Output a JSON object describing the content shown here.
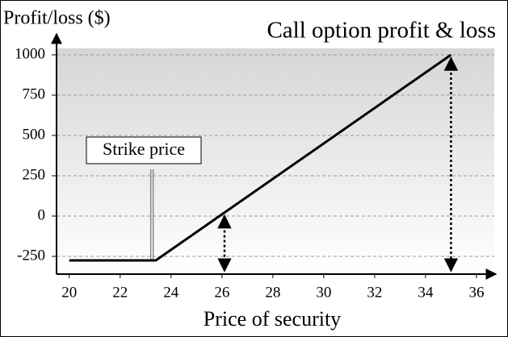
{
  "chart_data": {
    "type": "line",
    "title": "Call option profit & loss",
    "y_label": "Profit/loss ($)",
    "x_label": "Price of security",
    "annotation": "Strike price",
    "strike": 23.25,
    "arrows_x": [
      26.1,
      35
    ],
    "x": [
      20,
      23.4,
      35
    ],
    "values": [
      -275,
      -275,
      1000
    ],
    "color": "#000000",
    "xlim": [
      19.5,
      36.7
    ],
    "ylim": [
      -360,
      1140
    ],
    "xticks": [
      20,
      22,
      24,
      26,
      28,
      30,
      32,
      34,
      36
    ],
    "yticks": [
      -250,
      0,
      250,
      500,
      750,
      1000
    ],
    "grid": true
  }
}
